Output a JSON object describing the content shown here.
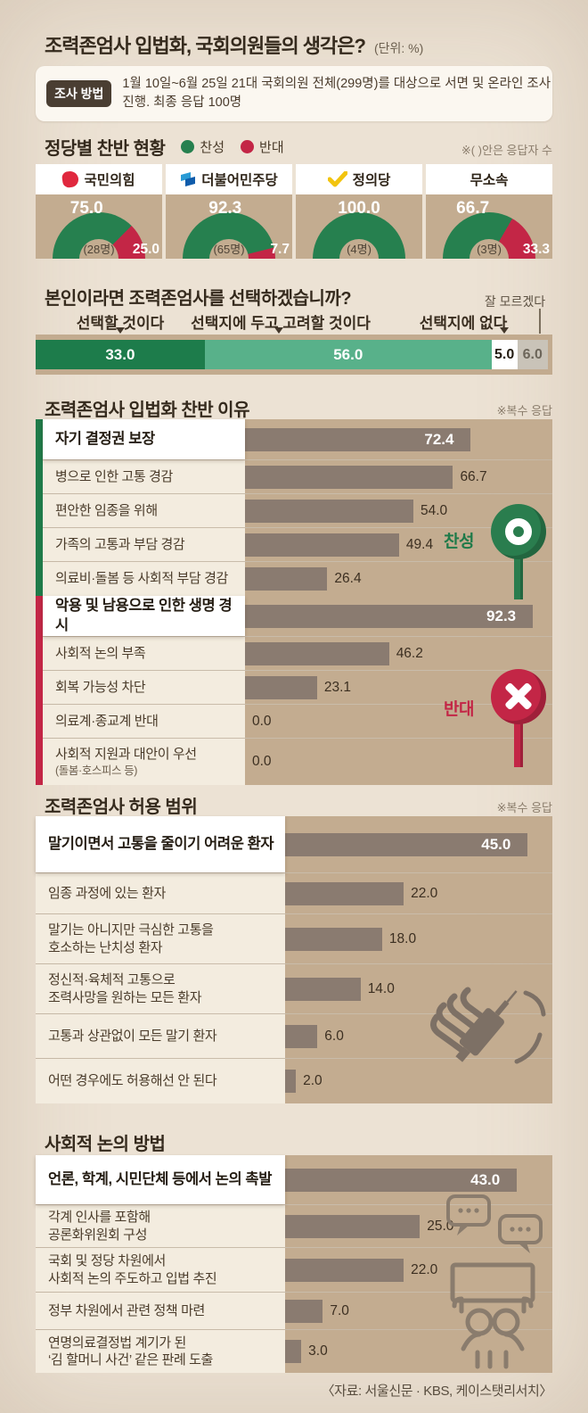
{
  "page": {
    "title": "조력존엄사 입법화, 국회의원들의 생각은?",
    "unit_note": "(단위: %)",
    "source": "〈자료: 서울신문 · KBS, 케이스탯리서치〉"
  },
  "survey_method": {
    "badge": "조사 방법",
    "line1": "1월 10일~6월 25일 21대 국회의원 전체(299명)를 대상으로 서면 및 온라인 조사",
    "line2": "진행. 최종 응답 100명"
  },
  "colors": {
    "green": "#26804f",
    "green_dark": "#1f7a49",
    "green_light": "#58b18a",
    "red": "#c32646",
    "bar": "#8a7b70",
    "tan": "#c3ac90",
    "gray_segment": "#c9c3b8",
    "justice_yellow": "#f2c40f",
    "ppp_red": "#e0283e",
    "dp_blue": "#0f5cab"
  },
  "chart_data": [
    {
      "id": "party_support",
      "type": "donut",
      "title": "정당별 찬반 현황",
      "legend": [
        "찬성",
        "반대"
      ],
      "note": "※( )안은 응답자 수",
      "groups": [
        {
          "party": "국민의힘",
          "logo": "ppp-logo-icon",
          "pro": 75.0,
          "con": 25.0,
          "n": "(28명)"
        },
        {
          "party": "더불어민주당",
          "logo": "dp-logo-icon",
          "pro": 92.3,
          "con": 7.7,
          "n": "(65명)"
        },
        {
          "party": "정의당",
          "logo": "justice-check-icon",
          "pro": 100.0,
          "con": null,
          "n": "(4명)"
        },
        {
          "party": "무소속",
          "logo": null,
          "pro": 66.7,
          "con": 33.3,
          "n": "(3명)"
        }
      ]
    },
    {
      "id": "self_choice",
      "type": "bar",
      "title": "본인이라면 조력존엄사를 선택하겠습니까?",
      "segments": [
        {
          "label": "선택할 것이다",
          "value": 33.0,
          "color": "#1d7c4b",
          "text": "#ffffff"
        },
        {
          "label": "선택지에 두고 고려할 것이다",
          "value": 56.0,
          "color": "#58b18a",
          "text": "#ffffff"
        },
        {
          "label": "선택지에 없다",
          "value": 5.0,
          "color": "#ffffff",
          "text": "#241c12"
        },
        {
          "label": "잘 모르겠다",
          "value": 6.0,
          "color": "#c9c3b8",
          "text": "#6d665a"
        }
      ]
    },
    {
      "id": "reasons",
      "type": "bar",
      "title": "조력존엄사 입법화 찬반 이유",
      "note": "※복수 응답",
      "pro_sign": "찬성",
      "con_sign": "반대",
      "pro_items": [
        {
          "label": "자기 결정권 보장",
          "value": 72.4,
          "highlight": true
        },
        {
          "label": "병으로 인한 고통 경감",
          "value": 66.7
        },
        {
          "label": "편안한 임종을 위해",
          "value": 54.0
        },
        {
          "label": "가족의 고통과 부담 경감",
          "value": 49.4
        },
        {
          "label": "의료비·돌봄 등 사회적 부담 경감",
          "value": 26.4
        }
      ],
      "con_items": [
        {
          "label": "악용 및 남용으로 인한 생명 경시",
          "value": 92.3,
          "highlight": true
        },
        {
          "label": "사회적 논의 부족",
          "value": 46.2
        },
        {
          "label": "회복 가능성 차단",
          "value": 23.1
        },
        {
          "label": "의료계·종교계 반대",
          "value": 0.0
        },
        {
          "label": "사회적 지원과 대안이 우선",
          "sub": "(돌봄·호스피스 등)",
          "value": 0.0
        }
      ]
    },
    {
      "id": "scope",
      "type": "bar",
      "title": "조력존엄사 허용 범위",
      "note": "※복수 응답",
      "items": [
        {
          "label": "말기이면서 고통을 줄이기 어려운 환자",
          "value": 45.0,
          "highlight": true
        },
        {
          "label": "임종 과정에 있는 환자",
          "value": 22.0
        },
        {
          "label": "말기는 아니지만 극심한 고통을|호소하는 난치성 환자",
          "value": 18.0
        },
        {
          "label": "정신적·육체적 고통으로|조력사망을 원하는 모든 환자",
          "value": 14.0
        },
        {
          "label": "고통과 상관없이 모든 말기 환자",
          "value": 6.0
        },
        {
          "label": "어떤 경우에도 허용해선 안 된다",
          "value": 2.0
        }
      ]
    },
    {
      "id": "discussion",
      "type": "bar",
      "title": "사회적 논의 방법",
      "items": [
        {
          "label": "언론, 학계, 시민단체 등에서 논의 촉발",
          "value": 43.0,
          "highlight": true
        },
        {
          "label": "각계 인사를 포함해|공론화위원회 구성",
          "value": 25.0
        },
        {
          "label": "국회 및 정당 차원에서|사회적 논의 주도하고 입법 추진",
          "value": 22.0
        },
        {
          "label": "정부 차원에서 관련 정책 마련",
          "value": 7.0
        },
        {
          "label": "연명의료결정법 계기가 된|‘김 할머니 사건’ 같은 판례 도출",
          "value": 3.0
        }
      ]
    }
  ]
}
